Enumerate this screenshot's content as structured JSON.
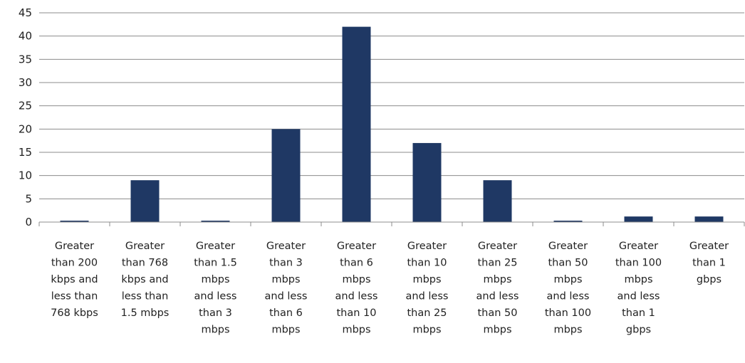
{
  "chart_data": {
    "type": "bar",
    "categories": [
      [
        "Greater",
        "than 200",
        "kbps and",
        "less than",
        "768 kbps"
      ],
      [
        "Greater",
        "than 768",
        "kbps and",
        "less than",
        "1.5 mbps"
      ],
      [
        "Greater",
        "than 1.5",
        "mbps",
        "and less",
        "than 3",
        "mbps"
      ],
      [
        "Greater",
        "than 3",
        "mbps",
        "and less",
        "than 6",
        "mbps"
      ],
      [
        "Greater",
        "than 6",
        "mbps",
        "and less",
        "than 10",
        "mbps"
      ],
      [
        "Greater",
        "than 10",
        "mbps",
        "and less",
        "than 25",
        "mbps"
      ],
      [
        "Greater",
        "than 25",
        "mbps",
        "and less",
        "than 50",
        "mbps"
      ],
      [
        "Greater",
        "than 50",
        "mbps",
        "and less",
        "than 100",
        "mbps"
      ],
      [
        "Greater",
        "than 100",
        "mbps",
        "and less",
        "than 1",
        "gbps"
      ],
      [
        "Greater",
        "than 1",
        "gbps"
      ]
    ],
    "values": [
      0.3,
      9,
      0.3,
      20,
      42,
      17,
      9,
      0.3,
      1.2,
      1.2
    ],
    "ylim": [
      0,
      45
    ],
    "yticks": [
      0,
      5,
      10,
      15,
      20,
      25,
      30,
      35,
      40,
      45
    ],
    "grid": true,
    "bar_color": "#1f3864",
    "grid_color": "#8c8c8c"
  }
}
